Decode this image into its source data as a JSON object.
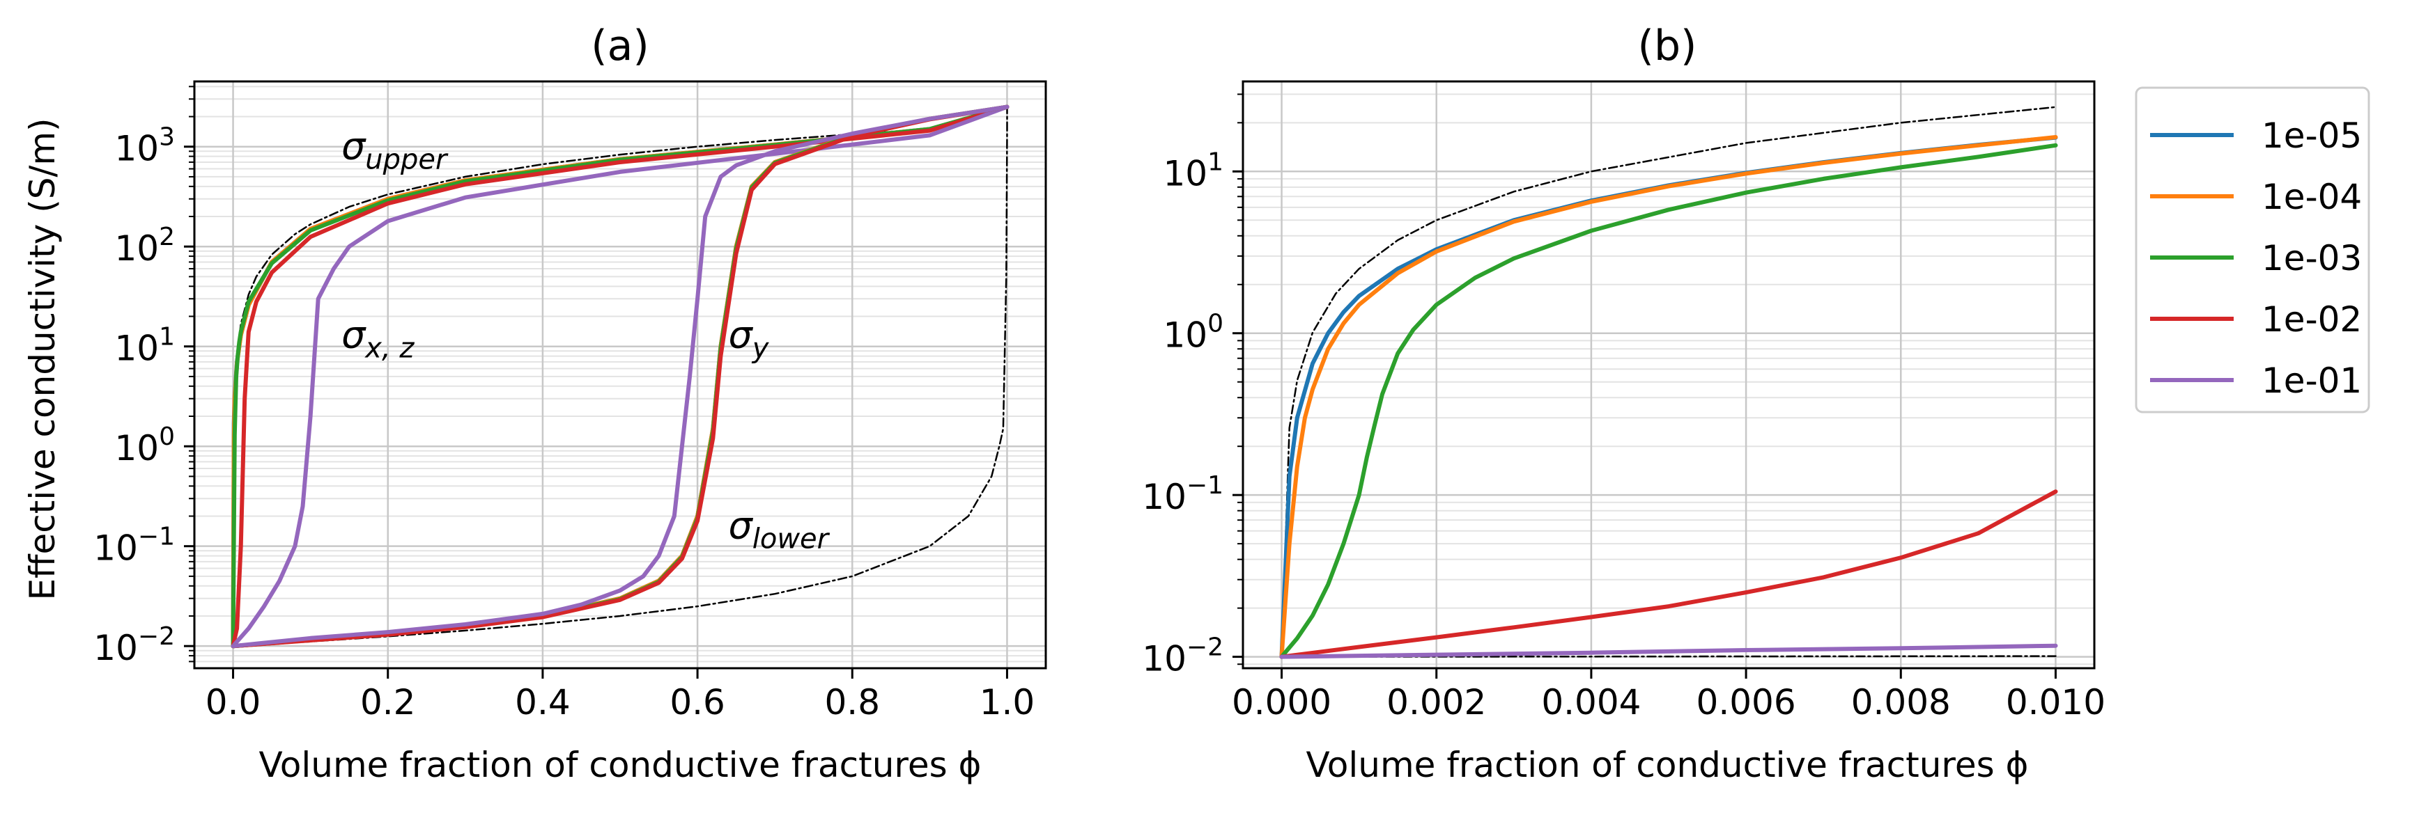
{
  "chart_data": [
    {
      "type": "line",
      "title": "(a)",
      "xlabel": "Volume fraction of conductive fractures ϕ",
      "ylabel": "Effective conductivity (S/m)",
      "xlim": [
        -0.05,
        1.05
      ],
      "ylim": [
        0.006,
        4500
      ],
      "yscale": "log",
      "grid": true,
      "x_ticks": [
        {
          "value": 0.0,
          "label": "0.0"
        },
        {
          "value": 0.2,
          "label": "0.2"
        },
        {
          "value": 0.4,
          "label": "0.4"
        },
        {
          "value": 0.6,
          "label": "0.6"
        },
        {
          "value": 0.8,
          "label": "0.8"
        },
        {
          "value": 1.0,
          "label": "1.0"
        }
      ],
      "y_ticks": [
        {
          "value": 0.01,
          "base": "10",
          "exp": "−2"
        },
        {
          "value": 0.1,
          "base": "10",
          "exp": "−1"
        },
        {
          "value": 1,
          "base": "10",
          "exp": "0"
        },
        {
          "value": 10,
          "base": "10",
          "exp": "1"
        },
        {
          "value": 100,
          "base": "10",
          "exp": "2"
        },
        {
          "value": 1000,
          "base": "10",
          "exp": "3"
        }
      ],
      "annotations": [
        {
          "id": "upper",
          "sym": "σ",
          "sub": "upper",
          "x": 0.14,
          "y": 1000
        },
        {
          "id": "xz",
          "sym": "σ",
          "sub": "x, z",
          "x": 0.14,
          "y": 13
        },
        {
          "id": "y",
          "sym": "σ",
          "sub": "y",
          "x": 0.64,
          "y": 13
        },
        {
          "id": "lower",
          "sym": "σ",
          "sub": "lower",
          "x": 0.64,
          "y": 0.16
        }
      ],
      "series": [
        {
          "id": "upper-bound",
          "color": "#000000",
          "dash": true,
          "x": [
            0,
            0.001,
            0.003,
            0.005,
            0.01,
            0.02,
            0.03,
            0.05,
            0.08,
            0.1,
            0.15,
            0.2,
            0.3,
            0.4,
            0.5,
            0.6,
            0.7,
            0.8,
            0.9,
            1.0
          ],
          "y": [
            0.01,
            1.7,
            5,
            8.3,
            16.7,
            33,
            50,
            83,
            133,
            167,
            250,
            333,
            500,
            667,
            833,
            1000,
            1167,
            1333,
            1500,
            2500
          ]
        },
        {
          "id": "lower-bound",
          "color": "#000000",
          "dash": true,
          "x": [
            0,
            0.1,
            0.2,
            0.3,
            0.4,
            0.5,
            0.6,
            0.7,
            0.8,
            0.9,
            0.95,
            0.98,
            0.99,
            0.995,
            0.999,
            1.0,
            1.0
          ],
          "y": [
            0.01,
            0.0111,
            0.0125,
            0.0143,
            0.0167,
            0.02,
            0.025,
            0.0333,
            0.05,
            0.1,
            0.2,
            0.5,
            1.0,
            1.5,
            50,
            1500,
            2500
          ]
        },
        {
          "name": "1e-05",
          "color": "#1f77b4",
          "group": "xz",
          "x": [
            0,
            0.001,
            0.002,
            0.005,
            0.01,
            0.02,
            0.05,
            0.1,
            0.2,
            0.3,
            0.5,
            0.7,
            0.9,
            1.0
          ],
          "y": [
            0.01,
            1.7,
            3.2,
            7,
            13,
            26,
            70,
            150,
            300,
            460,
            750,
            1050,
            1500,
            2500
          ]
        },
        {
          "name": "1e-04",
          "color": "#ff7f0e",
          "group": "xz",
          "x": [
            0,
            0.001,
            0.002,
            0.005,
            0.01,
            0.02,
            0.05,
            0.1,
            0.2,
            0.3,
            0.5,
            0.7,
            0.9,
            1.0
          ],
          "y": [
            0.01,
            1.2,
            3,
            6.8,
            13,
            26,
            70,
            150,
            300,
            460,
            750,
            1050,
            1500,
            2500
          ]
        },
        {
          "name": "1e-03",
          "color": "#2ca02c",
          "group": "xz",
          "x": [
            0,
            0.002,
            0.004,
            0.006,
            0.008,
            0.01,
            0.02,
            0.05,
            0.1,
            0.2,
            0.3,
            0.5,
            0.7,
            0.9,
            1.0
          ],
          "y": [
            0.01,
            1.3,
            5,
            8,
            11,
            14,
            28,
            68,
            145,
            290,
            450,
            740,
            1040,
            1500,
            2500
          ]
        },
        {
          "name": "1e-02",
          "color": "#d62728",
          "group": "xz",
          "x": [
            0,
            0.005,
            0.01,
            0.015,
            0.02,
            0.03,
            0.05,
            0.1,
            0.2,
            0.3,
            0.5,
            0.7,
            0.9,
            1.0
          ],
          "y": [
            0.01,
            0.015,
            0.1,
            3,
            14,
            28,
            55,
            125,
            270,
            420,
            700,
            1000,
            1450,
            2500
          ]
        },
        {
          "name": "1e-01",
          "color": "#9467bd",
          "group": "xz",
          "x": [
            0,
            0.02,
            0.04,
            0.06,
            0.08,
            0.09,
            0.1,
            0.11,
            0.13,
            0.15,
            0.2,
            0.3,
            0.5,
            0.7,
            0.9,
            1.0
          ],
          "y": [
            0.01,
            0.015,
            0.025,
            0.045,
            0.1,
            0.25,
            2,
            30,
            60,
            100,
            180,
            310,
            560,
            850,
            1300,
            2500
          ]
        },
        {
          "name": "1e-05",
          "color": "#1f77b4",
          "group": "y",
          "x": [
            0,
            0.1,
            0.2,
            0.3,
            0.4,
            0.5,
            0.55,
            0.58,
            0.6,
            0.62,
            0.63,
            0.65,
            0.67,
            0.7,
            0.8,
            0.9,
            1.0
          ],
          "y": [
            0.01,
            0.0115,
            0.0132,
            0.0158,
            0.02,
            0.03,
            0.045,
            0.08,
            0.2,
            1.5,
            10,
            100,
            400,
            700,
            1300,
            1900,
            2500
          ]
        },
        {
          "name": "1e-04",
          "color": "#ff7f0e",
          "group": "y",
          "x": [
            0,
            0.1,
            0.2,
            0.3,
            0.4,
            0.5,
            0.55,
            0.58,
            0.6,
            0.62,
            0.63,
            0.65,
            0.67,
            0.7,
            0.8,
            0.9,
            1.0
          ],
          "y": [
            0.01,
            0.0115,
            0.0132,
            0.0158,
            0.02,
            0.03,
            0.045,
            0.08,
            0.2,
            1.5,
            10,
            100,
            400,
            700,
            1300,
            1900,
            2500
          ]
        },
        {
          "name": "1e-03",
          "color": "#2ca02c",
          "group": "y",
          "x": [
            0,
            0.1,
            0.2,
            0.3,
            0.4,
            0.5,
            0.55,
            0.58,
            0.6,
            0.62,
            0.63,
            0.65,
            0.67,
            0.7,
            0.8,
            0.9,
            1.0
          ],
          "y": [
            0.01,
            0.0115,
            0.0132,
            0.0158,
            0.0198,
            0.0295,
            0.044,
            0.078,
            0.19,
            1.4,
            9.5,
            95,
            390,
            690,
            1290,
            1890,
            2500
          ]
        },
        {
          "name": "1e-02",
          "color": "#d62728",
          "group": "y",
          "x": [
            0,
            0.1,
            0.2,
            0.3,
            0.4,
            0.5,
            0.55,
            0.58,
            0.6,
            0.62,
            0.63,
            0.65,
            0.67,
            0.7,
            0.8,
            0.9,
            1.0
          ],
          "y": [
            0.01,
            0.0114,
            0.013,
            0.0155,
            0.0195,
            0.029,
            0.043,
            0.075,
            0.18,
            1.2,
            8,
            85,
            370,
            670,
            1270,
            1880,
            2500
          ]
        },
        {
          "name": "1e-01",
          "color": "#9467bd",
          "group": "y",
          "x": [
            0,
            0.1,
            0.2,
            0.3,
            0.4,
            0.45,
            0.5,
            0.53,
            0.55,
            0.57,
            0.58,
            0.59,
            0.6,
            0.61,
            0.63,
            0.65,
            0.7,
            0.8,
            0.9,
            1.0
          ],
          "y": [
            0.01,
            0.012,
            0.0138,
            0.0165,
            0.021,
            0.026,
            0.036,
            0.05,
            0.08,
            0.2,
            1,
            5,
            30,
            200,
            500,
            650,
            900,
            1350,
            1900,
            2500
          ]
        }
      ]
    },
    {
      "type": "line",
      "title": "(b)",
      "xlabel": "Volume fraction of conductive fractures ϕ",
      "ylabel": "",
      "xlim": [
        -0.0005,
        0.0105
      ],
      "ylim": [
        0.0085,
        36
      ],
      "yscale": "log",
      "grid": true,
      "x_ticks": [
        {
          "value": 0.0,
          "label": "0.000"
        },
        {
          "value": 0.002,
          "label": "0.002"
        },
        {
          "value": 0.004,
          "label": "0.004"
        },
        {
          "value": 0.006,
          "label": "0.006"
        },
        {
          "value": 0.008,
          "label": "0.008"
        },
        {
          "value": 0.01,
          "label": "0.010"
        }
      ],
      "y_ticks": [
        {
          "value": 0.01,
          "base": "10",
          "exp": "−2"
        },
        {
          "value": 0.1,
          "base": "10",
          "exp": "−1"
        },
        {
          "value": 1,
          "base": "10",
          "exp": "0"
        },
        {
          "value": 10,
          "base": "10",
          "exp": "1"
        }
      ],
      "legend": {
        "placement": "outside-right-top",
        "entries": [
          {
            "label": "1e-05",
            "color": "#1f77b4"
          },
          {
            "label": "1e-04",
            "color": "#ff7f0e"
          },
          {
            "label": "1e-03",
            "color": "#2ca02c"
          },
          {
            "label": "1e-02",
            "color": "#d62728"
          },
          {
            "label": "1e-01",
            "color": "#9467bd"
          }
        ]
      },
      "series": [
        {
          "id": "upper-bound",
          "color": "#000000",
          "dash": true,
          "x": [
            0,
            0.0001,
            0.0002,
            0.0004,
            0.0007,
            0.001,
            0.0015,
            0.002,
            0.003,
            0.004,
            0.006,
            0.008,
            0.01
          ],
          "y": [
            0.01,
            0.26,
            0.51,
            1.01,
            1.76,
            2.5,
            3.76,
            5,
            7.5,
            10,
            15,
            20,
            25
          ]
        },
        {
          "id": "lower-bound",
          "color": "#000000",
          "dash": true,
          "x": [
            0,
            0.01
          ],
          "y": [
            0.01,
            0.0101
          ]
        },
        {
          "name": "1e-05",
          "color": "#1f77b4",
          "x": [
            0,
            0.0001,
            0.0002,
            0.0004,
            0.0006,
            0.0008,
            0.001,
            0.0015,
            0.002,
            0.003,
            0.004,
            0.005,
            0.006,
            0.007,
            0.008,
            0.009,
            0.01
          ],
          "y": [
            0.01,
            0.13,
            0.3,
            0.65,
            1.0,
            1.35,
            1.7,
            2.5,
            3.3,
            5.0,
            6.6,
            8.2,
            9.8,
            11.4,
            13.0,
            14.6,
            16.2
          ]
        },
        {
          "name": "1e-04",
          "color": "#ff7f0e",
          "x": [
            0,
            0.0001,
            0.0002,
            0.0003,
            0.0004,
            0.0006,
            0.0008,
            0.001,
            0.0015,
            0.002,
            0.003,
            0.004,
            0.005,
            0.006,
            0.007,
            0.008,
            0.009,
            0.01
          ],
          "y": [
            0.01,
            0.05,
            0.15,
            0.3,
            0.45,
            0.8,
            1.15,
            1.5,
            2.35,
            3.2,
            4.9,
            6.5,
            8.1,
            9.7,
            11.3,
            12.9,
            14.5,
            16.3
          ]
        },
        {
          "name": "1e-03",
          "color": "#2ca02c",
          "x": [
            0,
            0.0002,
            0.0004,
            0.0006,
            0.0008,
            0.001,
            0.0011,
            0.0012,
            0.0013,
            0.0015,
            0.0017,
            0.002,
            0.0025,
            0.003,
            0.004,
            0.005,
            0.006,
            0.007,
            0.008,
            0.009,
            0.01
          ],
          "y": [
            0.01,
            0.013,
            0.018,
            0.028,
            0.05,
            0.1,
            0.17,
            0.27,
            0.42,
            0.75,
            1.05,
            1.5,
            2.2,
            2.9,
            4.3,
            5.8,
            7.4,
            9.0,
            10.6,
            12.3,
            14.5
          ]
        },
        {
          "name": "1e-02",
          "color": "#d62728",
          "x": [
            0,
            0.001,
            0.002,
            0.003,
            0.004,
            0.005,
            0.006,
            0.007,
            0.008,
            0.009,
            0.01
          ],
          "y": [
            0.01,
            0.0115,
            0.0132,
            0.0152,
            0.0176,
            0.0205,
            0.025,
            0.031,
            0.041,
            0.058,
            0.105
          ]
        },
        {
          "name": "1e-01",
          "color": "#9467bd",
          "x": [
            0,
            0.002,
            0.004,
            0.006,
            0.008,
            0.01
          ],
          "y": [
            0.01,
            0.0103,
            0.0106,
            0.011,
            0.0113,
            0.0117
          ]
        }
      ]
    }
  ]
}
